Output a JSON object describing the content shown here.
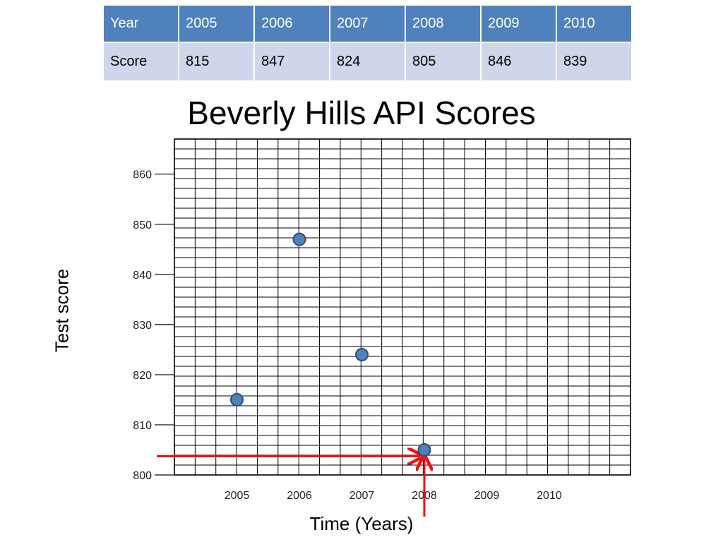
{
  "table": {
    "header": [
      "Year",
      "2005",
      "2006",
      "2007",
      "2008",
      "2009",
      "2010"
    ],
    "row": [
      "Score",
      "815",
      "847",
      "824",
      "805",
      "846",
      "839"
    ]
  },
  "chart_data": {
    "type": "scatter",
    "title": "Beverly Hills API Scores",
    "xlabel": "Time (Years)",
    "ylabel": "Test score",
    "x_ticks": [
      "2005",
      "2006",
      "2007",
      "2008",
      "2009",
      "2010"
    ],
    "y_ticks": [
      "800",
      "810",
      "820",
      "830",
      "840",
      "850",
      "860"
    ],
    "xlim": [
      2004,
      2011.3
    ],
    "ylim": [
      800,
      867
    ],
    "grid": true,
    "series": [
      {
        "x": [
          2005,
          2006,
          2007,
          2008
        ],
        "y": [
          815,
          847,
          824,
          805
        ]
      }
    ],
    "annotations": [
      "horizontal red arrow from the y-axis to the 2008 point",
      "vertical red arrow from below the axis up to the 2008 point"
    ],
    "colors": {
      "point": "#4f81bd",
      "point_stroke": "#2c4d75",
      "arrow": "#ee1111",
      "grid": "#000000"
    }
  }
}
